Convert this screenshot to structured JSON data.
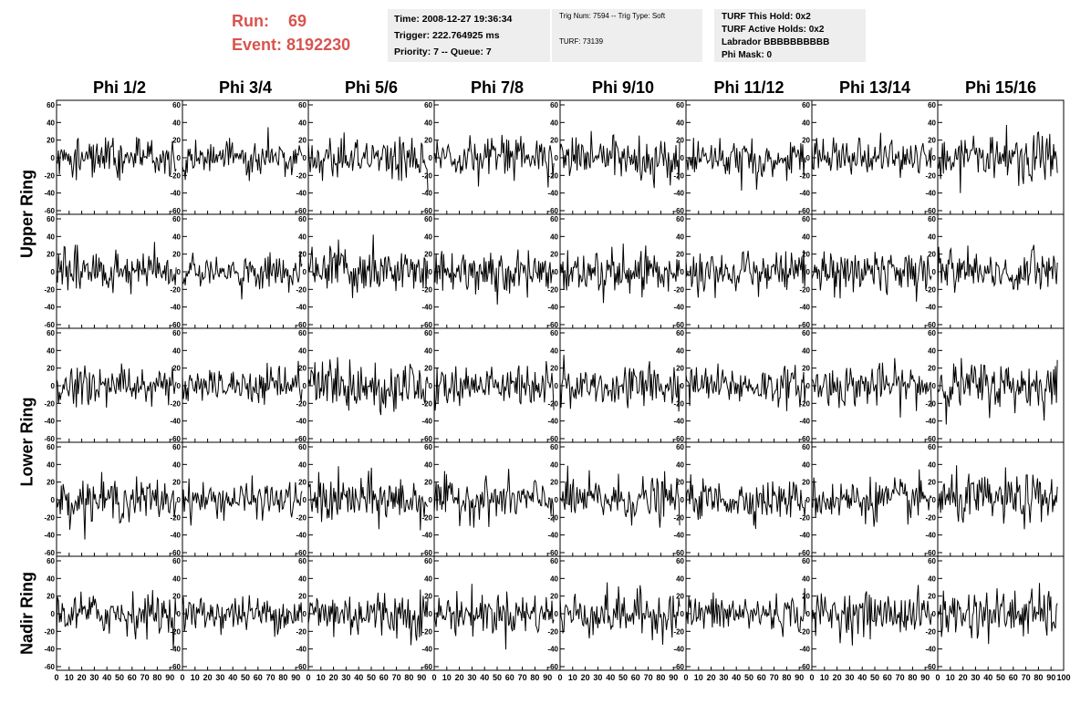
{
  "header": {
    "run_label": "Run:",
    "run_value": "69",
    "event_label": "Event:",
    "event_value": "8192230",
    "info1": [
      "Time: 2008-12-27 19:36:34",
      "Trigger: 222.764925 ms",
      "Priority: 7 -- Queue: 7"
    ],
    "info2_line1": "Trig Num: 7594 -- Trig Type: Soft",
    "info2_line2": "TURF: 73139",
    "info3": [
      "TURF This Hold: 0x2",
      "TURF Active Holds: 0x2",
      "Labrador BBBBBBBBBB",
      "Phi Mask: 0"
    ]
  },
  "columns": [
    "Phi 1/2",
    "Phi 3/4",
    "Phi 5/6",
    "Phi 7/8",
    "Phi 9/10",
    "Phi 11/12",
    "Phi 13/14",
    "Phi 15/16"
  ],
  "row_groups": [
    {
      "label": "Upper Ring",
      "rows": [
        0,
        1
      ]
    },
    {
      "label": "Lower Ring",
      "rows": [
        2,
        3
      ]
    },
    {
      "label": "Nadir Ring",
      "rows": [
        4
      ]
    }
  ],
  "chart_data": {
    "type": "line",
    "layout": "grid of 5 rows x 8 columns of waveform panels",
    "y_ticks": [
      -60,
      -40,
      -20,
      0,
      20,
      40,
      60
    ],
    "ylim": [
      -60,
      60
    ],
    "x_ticks": [
      0,
      10,
      20,
      30,
      40,
      50,
      60,
      70,
      80,
      90,
      100
    ],
    "xlim": [
      0,
      100
    ],
    "samples_per_panel": 128,
    "typical_amplitude": [
      12,
      10,
      14,
      12,
      13,
      11,
      12,
      14
    ],
    "colors": {
      "trace": "#000000",
      "frame": "#000000",
      "run_text": "#d9534f",
      "info_bg": "#eeeeee"
    }
  }
}
